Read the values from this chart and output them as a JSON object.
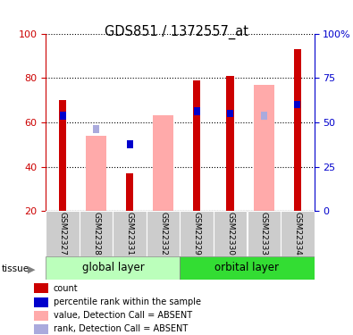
{
  "title": "GDS851 / 1372557_at",
  "samples": [
    "GSM22327",
    "GSM22328",
    "GSM22331",
    "GSM22332",
    "GSM22329",
    "GSM22330",
    "GSM22333",
    "GSM22334"
  ],
  "group_labels": [
    "global layer",
    "orbital layer"
  ],
  "tissue_label": "tissue",
  "red_bars": [
    70,
    0,
    37,
    0,
    79,
    81,
    0,
    93
  ],
  "pink_bars": [
    0,
    54,
    0,
    63,
    0,
    0,
    77,
    0
  ],
  "blue_squares": [
    63,
    0,
    50,
    0,
    65,
    64,
    0,
    68
  ],
  "light_blue_squares": [
    0,
    57,
    0,
    0,
    0,
    0,
    63,
    0
  ],
  "ylim_left": [
    20,
    100
  ],
  "ylim_right": [
    0,
    100
  ],
  "yticks_left": [
    20,
    40,
    60,
    80,
    100
  ],
  "yticks_right": [
    0,
    25,
    50,
    75,
    100
  ],
  "ytick_labels_right": [
    "0",
    "25",
    "50",
    "75",
    "100%"
  ],
  "left_axis_color": "#cc0000",
  "right_axis_color": "#0000cc",
  "bar_width": 0.6,
  "red_color": "#cc0000",
  "pink_color": "#ffaaaa",
  "blue_color": "#0000cc",
  "light_blue_color": "#aaaadd",
  "group1_bg": "#bbffbb",
  "group2_bg": "#33dd33",
  "sample_bg": "#cccccc",
  "legend_items": [
    {
      "color": "#cc0000",
      "label": "count"
    },
    {
      "color": "#0000cc",
      "label": "percentile rank within the sample"
    },
    {
      "color": "#ffaaaa",
      "label": "value, Detection Call = ABSENT"
    },
    {
      "color": "#aaaadd",
      "label": "rank, Detection Call = ABSENT"
    }
  ]
}
